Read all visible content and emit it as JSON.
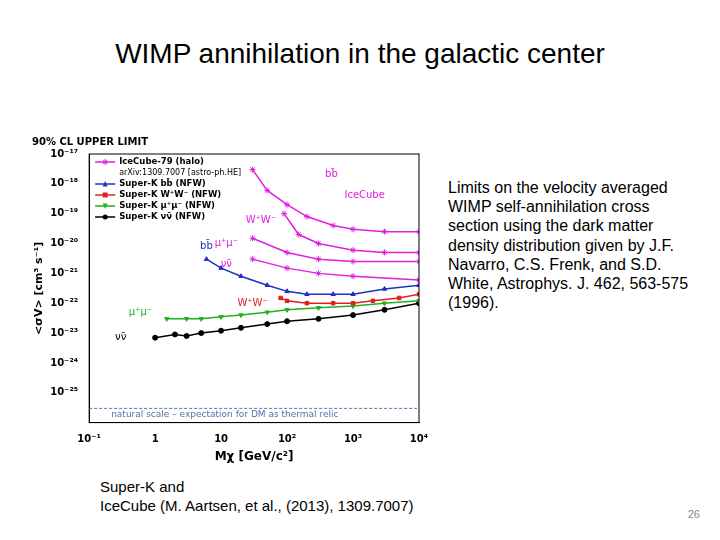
{
  "slide": {
    "title": "WIMP annihilation in the galactic center",
    "side_text": "Limits on the velocity averaged WIMP self-annihilation cross section using the dark matter density distribution given by J.F. Navarro, C.S. Frenk, and S.D. White, Astrophys. J. 462, 563-575 (1996).",
    "citation": [
      "Super-K and",
      "IceCube (M. Aartsen, et al., (2013), 1309.7007)"
    ],
    "page": 26
  },
  "chart_data": {
    "type": "line",
    "title": "90% CL UPPER LIMIT",
    "x_label": "Mχ [GeV/c²]",
    "y_label": "<σV> [cm³ s⁻¹]",
    "log": true,
    "grid": false,
    "legend": "top-left",
    "legend_note": "arXiv:1309.7007 [astro-ph.HE]",
    "xlim": [
      0.1,
      10000
    ],
    "xticks": [
      {
        "value": 0.1,
        "label": "10⁻¹"
      },
      1,
      10,
      {
        "value": 100,
        "label": "10²"
      },
      {
        "value": 1000,
        "label": "10³"
      },
      {
        "value": 10000,
        "label": "10⁴"
      }
    ],
    "ylim": [
      1e-26,
      1e-17
    ],
    "yticks": [
      {
        "value": 1e-25,
        "label": "10⁻²⁵"
      },
      {
        "value": 1e-24,
        "label": "10⁻²⁴"
      },
      {
        "value": 1e-23,
        "label": "10⁻²³"
      },
      {
        "value": 1e-22,
        "label": "10⁻²²"
      },
      {
        "value": 1e-21,
        "label": "10⁻²¹"
      },
      {
        "value": 1e-20,
        "label": "10⁻²⁰"
      },
      {
        "value": 1e-19,
        "label": "10⁻¹⁹"
      },
      {
        "value": 1e-18,
        "label": "10⁻¹⁸"
      },
      {
        "value": 1e-17,
        "label": "10⁻¹⁷"
      }
    ],
    "series": [
      {
        "name": "IceCube-79 (halo)",
        "color": "#e020e0",
        "marker": "star",
        "x": [
          30,
          50,
          100,
          200,
          500,
          1000,
          3000,
          10000
        ],
        "values": [
          3e-18,
          6e-19,
          2e-19,
          8e-20,
          4e-20,
          3e-20,
          2.5e-20,
          2.5e-20
        ]
      },
      {
        "name": "IceCube-79 (halo)",
        "color": "#e020e0",
        "marker": "star",
        "x": [
          90,
          150,
          300,
          1000,
          3000,
          10000
        ],
        "values": [
          1e-19,
          2e-20,
          1e-20,
          6e-21,
          5e-21,
          5e-21
        ]
      },
      {
        "name": "IceCube-79 (halo)",
        "color": "#e020e0",
        "marker": "star",
        "x": [
          30,
          100,
          300,
          1000,
          10000
        ],
        "values": [
          1.5e-20,
          5e-21,
          3e-21,
          2.5e-21,
          2.5e-21
        ]
      },
      {
        "name": "IceCube-79 (halo)",
        "color": "#e020e0",
        "marker": "star",
        "x": [
          30,
          100,
          300,
          1000,
          10000
        ],
        "values": [
          3e-21,
          1.5e-21,
          1e-21,
          8e-22,
          6e-22
        ]
      },
      {
        "name": "Super-K bb̄ (NFW)",
        "color": "#2030c0",
        "marker": "triangle-up",
        "x": [
          6,
          10,
          20,
          50,
          100,
          200,
          500,
          1000,
          3000,
          10000
        ],
        "values": [
          3e-21,
          1.5e-21,
          8e-22,
          4e-22,
          2.5e-22,
          2e-22,
          2e-22,
          2e-22,
          3e-22,
          4e-22
        ]
      },
      {
        "name": "Super-K W⁺W⁻ (NFW)",
        "color": "#e02020",
        "marker": "square",
        "x": [
          80,
          100,
          200,
          500,
          1000,
          2000,
          5000,
          10000
        ],
        "values": [
          1.5e-22,
          1.2e-22,
          1e-22,
          1e-22,
          1e-22,
          1.2e-22,
          1.5e-22,
          2e-22
        ]
      },
      {
        "name": "Super-K μ⁺μ⁻ (NFW)",
        "color": "#20b020",
        "marker": "triangle-down",
        "x": [
          1.5,
          3,
          5,
          10,
          20,
          50,
          100,
          300,
          1000,
          3000,
          10000
        ],
        "values": [
          3e-23,
          3e-23,
          3e-23,
          3.5e-23,
          4e-23,
          5e-23,
          6e-23,
          7e-23,
          8e-23,
          1e-22,
          1.2e-22
        ]
      },
      {
        "name": "Super-K νν̄ (NFW)",
        "color": "#000000",
        "marker": "circle",
        "x": [
          1,
          2,
          3,
          5,
          10,
          20,
          50,
          100,
          300,
          1000,
          3000,
          10000
        ],
        "values": [
          7e-24,
          9e-24,
          8e-24,
          1e-23,
          1.2e-23,
          1.5e-23,
          2e-23,
          2.5e-23,
          3e-23,
          4e-23,
          6e-23,
          1e-22
        ]
      }
    ],
    "annotations": [
      {
        "text": "bb̄",
        "x": 470,
        "y": 2e-18,
        "color": "#e020e0"
      },
      {
        "text": "IceCube",
        "x": 1500,
        "y": 4e-19,
        "color": "#e020e0"
      },
      {
        "text": "W⁺W⁻",
        "x": 40,
        "y": 6e-20,
        "color": "#e020e0"
      },
      {
        "text": "μ⁺μ⁻",
        "x": 12,
        "y": 1e-20,
        "color": "#e020e0"
      },
      {
        "text": "νν̄",
        "x": 12,
        "y": 2e-21,
        "color": "#e020e0"
      },
      {
        "text": "bb̄",
        "x": 6,
        "y": 8e-21,
        "color": "#2030c0"
      },
      {
        "text": "W⁺W⁻",
        "x": 30,
        "y": 1e-22,
        "color": "#e02020"
      },
      {
        "text": "μ⁺μ⁻",
        "x": 0.6,
        "y": 5e-23,
        "color": "#20b020"
      },
      {
        "text": "νν̄",
        "x": 0.3,
        "y": 7e-24,
        "color": "#000000"
      }
    ],
    "reference_line": {
      "value": 3e-26,
      "label": "natural scale – expectation for DM as thermal relic",
      "color": "#5a6fa8",
      "line_style": "dashed"
    }
  }
}
